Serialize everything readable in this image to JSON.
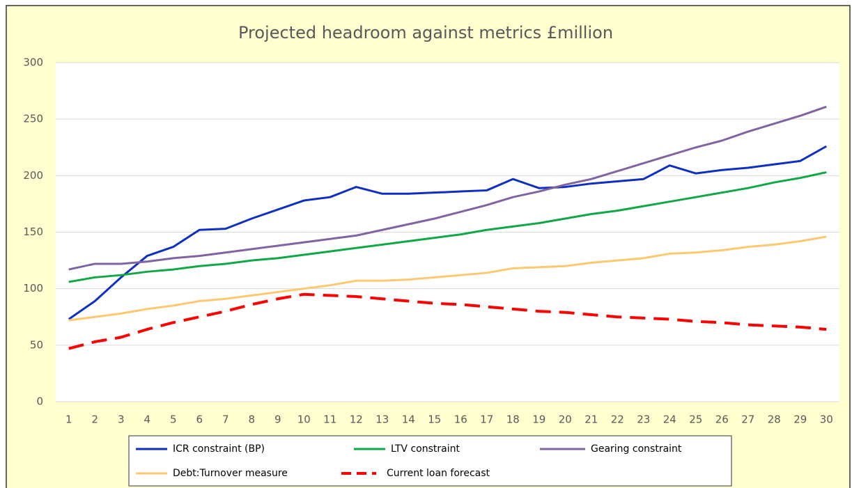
{
  "chart_data": {
    "type": "line",
    "title": "Projected headroom against metrics £million",
    "categories": [
      1,
      2,
      3,
      4,
      5,
      6,
      7,
      8,
      9,
      10,
      11,
      12,
      13,
      14,
      15,
      16,
      17,
      18,
      19,
      20,
      21,
      22,
      23,
      24,
      25,
      26,
      27,
      28,
      29,
      30
    ],
    "ylim": [
      0,
      300
    ],
    "yticks": [
      0,
      50,
      100,
      150,
      200,
      250,
      300
    ],
    "grid": true,
    "series": [
      {
        "name": "ICR constraint (BP)",
        "color": "#0e2fc0",
        "values": [
          73,
          89,
          110,
          129,
          137,
          152,
          153,
          162,
          170,
          178,
          181,
          190,
          184,
          184,
          185,
          186,
          187,
          197,
          189,
          190,
          193,
          195,
          197,
          209,
          202,
          205,
          207,
          210,
          213,
          226
        ]
      },
      {
        "name": "LTV constraint",
        "color": "#10a846",
        "values": [
          106,
          110,
          112,
          115,
          117,
          120,
          122,
          125,
          127,
          130,
          133,
          136,
          139,
          142,
          145,
          148,
          152,
          155,
          158,
          162,
          166,
          169,
          173,
          177,
          181,
          185,
          189,
          194,
          198,
          203
        ]
      },
      {
        "name": "Gearing constraint",
        "color": "#8064a2",
        "values": [
          117,
          122,
          122,
          124,
          127,
          129,
          132,
          135,
          138,
          141,
          144,
          147,
          152,
          157,
          162,
          168,
          174,
          181,
          186,
          192,
          197,
          204,
          211,
          218,
          225,
          231,
          239,
          246,
          253,
          261
        ]
      },
      {
        "name": "Debt:Turnover measure",
        "color": "#fcc870",
        "values": [
          72,
          75,
          78,
          82,
          85,
          89,
          91,
          94,
          97,
          100,
          103,
          107,
          107,
          108,
          110,
          112,
          114,
          118,
          119,
          120,
          123,
          125,
          127,
          131,
          132,
          134,
          137,
          139,
          142,
          146
        ]
      },
      {
        "name": "Current loan forecast",
        "color": "#ff0000",
        "dashed": true,
        "values": [
          47,
          53,
          57,
          64,
          70,
          75,
          80,
          86,
          91,
          95,
          94,
          93,
          91,
          89,
          87,
          86,
          84,
          82,
          80,
          79,
          77,
          75,
          74,
          73,
          71,
          70,
          68,
          67,
          66,
          64
        ]
      }
    ]
  }
}
